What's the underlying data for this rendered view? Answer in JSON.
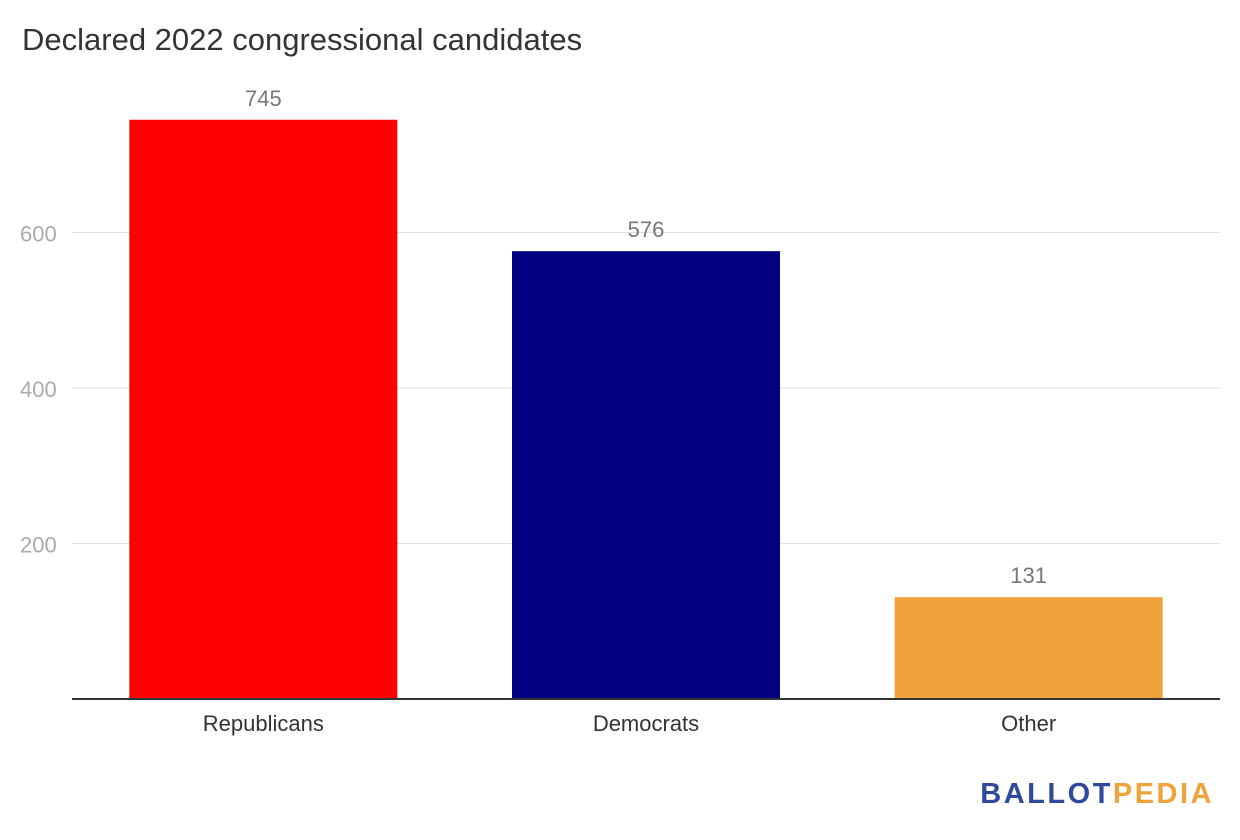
{
  "title": "Declared 2022 congressional candidates",
  "chart_data": {
    "type": "bar",
    "categories": [
      "Republicans",
      "Democrats",
      "Other"
    ],
    "values": [
      745,
      576,
      131
    ],
    "colors": [
      "#ff0000",
      "#000080",
      "#f0a33a"
    ],
    "yticks": [
      200,
      400,
      600
    ],
    "ylim": [
      0,
      800
    ],
    "grid": true,
    "xlabel": "",
    "ylabel": ""
  },
  "brand": {
    "part1": "BALLOT",
    "part2": "PEDIA"
  }
}
